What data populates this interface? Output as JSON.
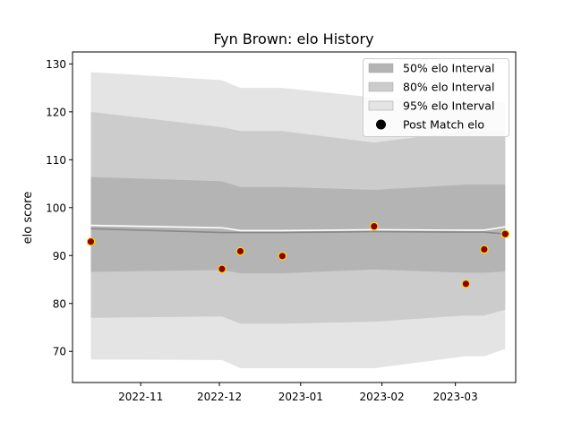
{
  "chart_data": {
    "type": "line",
    "title": "Fyn Brown: elo History",
    "xlabel": "",
    "ylabel": "elo score",
    "xlim": [
      "2022-10-06",
      "2023-03-24"
    ],
    "ylim": [
      63.5,
      132.5
    ],
    "x_ticks": [
      {
        "date": "2022-11-01",
        "label": "2022-11"
      },
      {
        "date": "2022-12-01",
        "label": "2022-12"
      },
      {
        "date": "2023-01-01",
        "label": "2023-01"
      },
      {
        "date": "2023-02-01",
        "label": "2023-02"
      },
      {
        "date": "2023-03-01",
        "label": "2023-03"
      }
    ],
    "y_ticks": [
      70,
      80,
      90,
      100,
      110,
      120,
      130
    ],
    "grid": false,
    "legend_position": "top-right",
    "interval_dates": [
      "2022-10-13",
      "2022-12-02",
      "2022-12-09",
      "2022-12-25",
      "2023-01-29",
      "2023-03-05",
      "2023-03-12",
      "2023-03-20"
    ],
    "bands": [
      {
        "name": "95% elo Interval",
        "color": "#e4e4e4",
        "upper": [
          128.3,
          126.6,
          125.0,
          125.0,
          123.0,
          122.0,
          122.0,
          122.0
        ],
        "lower": [
          68.3,
          68.2,
          66.5,
          66.5,
          66.5,
          69.0,
          69.0,
          70.5
        ]
      },
      {
        "name": "80% elo Interval",
        "color": "#cccccc",
        "upper": [
          120.0,
          116.8,
          116.0,
          116.0,
          113.6,
          116.0,
          116.0,
          116.0
        ],
        "lower": [
          77.0,
          77.3,
          75.8,
          75.8,
          76.2,
          77.5,
          77.5,
          78.7
        ]
      },
      {
        "name": "50% elo Interval",
        "color": "#b4b4b4",
        "upper": [
          106.4,
          105.5,
          104.3,
          104.3,
          103.7,
          104.8,
          104.8,
          104.8
        ],
        "lower": [
          86.6,
          87.0,
          86.3,
          86.3,
          87.1,
          86.4,
          86.4,
          86.7
        ]
      }
    ],
    "mean_line": [
      95.6,
      94.8,
      94.8,
      94.8,
      95.0,
      94.9,
      94.9,
      94.5
    ],
    "white_line": [
      96.3,
      95.8,
      95.2,
      95.2,
      95.4,
      95.3,
      95.3,
      96.0
    ],
    "series": [
      {
        "name": "Post Match elo",
        "x": [
          "2022-10-13",
          "2022-12-02",
          "2022-12-09",
          "2022-12-25",
          "2023-01-29",
          "2023-03-05",
          "2023-03-12",
          "2023-03-20"
        ],
        "y": [
          92.9,
          87.2,
          90.9,
          89.9,
          96.1,
          84.1,
          91.3,
          94.5
        ],
        "marker_fill": "#8b0000",
        "marker_edge": "#ffd700"
      }
    ]
  }
}
